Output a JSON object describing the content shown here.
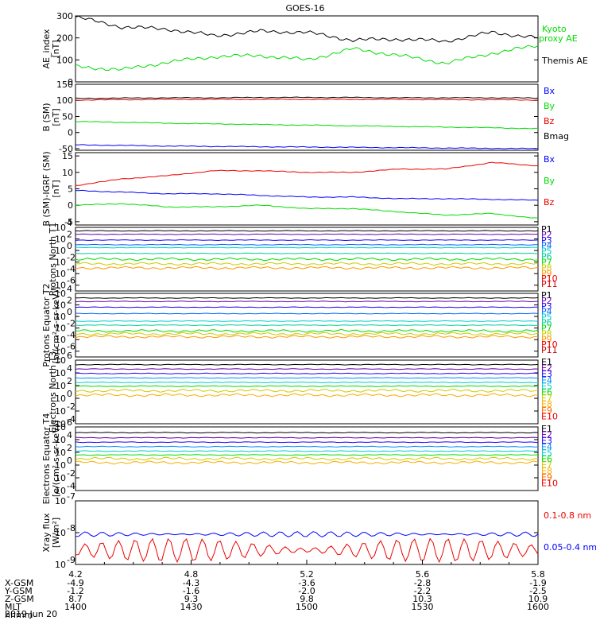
{
  "title": "GOES-16",
  "date_label": "2019 Jun 20",
  "colors": {
    "black": "#000000",
    "blue": "#0000ff",
    "green": "#00dd00",
    "red": "#ee0000",
    "proton": [
      "#000000",
      "#6600aa",
      "#2200ff",
      "#0066ff",
      "#00cccc",
      "#00cc99",
      "#00dd00",
      "#cccc00",
      "#ff9900",
      "#ee0000",
      "#cc0000"
    ],
    "electron": [
      "#000000",
      "#6600aa",
      "#2200ff",
      "#0088ff",
      "#00cccc",
      "#00dd00",
      "#cccc00",
      "#ffaa00",
      "#ff6600",
      "#ee0000"
    ]
  },
  "x_axis": {
    "tick_labels": [
      "4.2",
      "4.8",
      "5.2",
      "5.6",
      "5.8"
    ],
    "rows": [
      {
        "name": "X-GSM",
        "values": [
          "-4.9",
          "-4.3",
          "-3.6",
          "-2.8",
          "-1.9"
        ]
      },
      {
        "name": "Y-GSM",
        "values": [
          "-1.2",
          "-1.6",
          "-2.0",
          "-2.2",
          "-2.5"
        ]
      },
      {
        "name": "Z-GSM",
        "values": [
          "8.7",
          "9.3",
          "9.8",
          "10.3",
          "10.9"
        ]
      },
      {
        "name": "MLT",
        "values": [
          "1400",
          "1430",
          "1500",
          "1530",
          "1600"
        ]
      }
    ],
    "extra_row_label": "hhmm"
  },
  "chart_data": [
    {
      "type": "line",
      "name": "ae",
      "ylabel": "AE_index [nT]",
      "ylim": [
        0,
        300
      ],
      "ticks": [
        "0",
        "100",
        "200",
        "300"
      ],
      "x": [
        0,
        0.1,
        0.2,
        0.3,
        0.4,
        0.5,
        0.6,
        0.7,
        0.8,
        0.9,
        1.0
      ],
      "series": [
        {
          "name": "Themis AE",
          "color": "black",
          "values": [
            295,
            250,
            240,
            210,
            230,
            225,
            190,
            195,
            185,
            225,
            200
          ]
        },
        {
          "name": "Kyoto proxy AE",
          "color": "green",
          "values": [
            70,
            55,
            90,
            115,
            120,
            100,
            150,
            120,
            85,
            130,
            165
          ]
        }
      ],
      "legend": [
        "Kyoto proxy AE",
        "Themis AE"
      ]
    },
    {
      "type": "line",
      "name": "bsm",
      "ylabel": "B (SM) [nT]",
      "ylim": [
        -55,
        150
      ],
      "ticks": [
        "-50",
        "0",
        "50",
        "100",
        "150"
      ],
      "x": [
        0,
        0.1,
        0.2,
        0.3,
        0.4,
        0.5,
        0.6,
        0.7,
        0.8,
        0.9,
        1.0
      ],
      "series": [
        {
          "name": "Bmag",
          "color": "black",
          "values": [
            106,
            107,
            108,
            108,
            109,
            109,
            109,
            108,
            108,
            108,
            107
          ]
        },
        {
          "name": "Bz",
          "color": "red",
          "values": [
            101,
            102,
            103,
            103,
            103,
            103,
            103,
            103,
            102,
            102,
            101
          ]
        },
        {
          "name": "By",
          "color": "green",
          "values": [
            34,
            32,
            29,
            27,
            25,
            23,
            21,
            19,
            17,
            15,
            12
          ]
        },
        {
          "name": "Bx",
          "color": "blue",
          "values": [
            -38,
            -40,
            -42,
            -43,
            -44,
            -45,
            -46,
            -47,
            -48,
            -49,
            -50
          ]
        }
      ],
      "legend": [
        "Bx",
        "By",
        "Bz",
        "Bmag"
      ]
    },
    {
      "type": "line",
      "name": "bdiff",
      "ylabel": "B (SM)-IGRF (SM) [nT]",
      "ylim": [
        -6,
        16
      ],
      "ticks": [
        "-5",
        "0",
        "5",
        "10",
        "15"
      ],
      "x": [
        0,
        0.1,
        0.2,
        0.3,
        0.4,
        0.5,
        0.6,
        0.7,
        0.8,
        0.9,
        1.0
      ],
      "series": [
        {
          "name": "Bz",
          "color": "red",
          "values": [
            6,
            8,
            9,
            10.5,
            10.5,
            10,
            10,
            11,
            11,
            13,
            12
          ]
        },
        {
          "name": "By",
          "color": "green",
          "values": [
            0,
            0.5,
            -0.5,
            -0.5,
            0,
            -1,
            -1,
            -2,
            -3,
            -2.5,
            -4
          ]
        },
        {
          "name": "Bx",
          "color": "blue",
          "values": [
            4.5,
            4,
            3.5,
            3.5,
            3,
            2.5,
            2.5,
            2,
            2,
            1.8,
            1.5
          ]
        }
      ],
      "legend": [
        "Bx",
        "By",
        "Bz"
      ]
    },
    {
      "type": "line",
      "name": "pnorth",
      "log": true,
      "ylabel": "Protons North T1",
      "ylim_exp": [
        -7,
        4
      ],
      "ticks": [
        {
          "m": "10",
          "e": "4"
        },
        {
          "m": "10",
          "e": "2"
        },
        {
          "m": "10",
          "e": "0"
        },
        {
          "m": "10",
          "e": "-2"
        },
        {
          "m": "10",
          "e": "-4"
        },
        {
          "m": "10",
          "e": "-6"
        }
      ],
      "levels_exp": [
        3.4,
        2.8,
        1.8,
        1.0,
        0.5,
        -0.5,
        -1.5,
        -2.3,
        -3.0
      ],
      "legend": [
        "P1",
        "P2",
        "P3",
        "P4",
        "P5",
        "P6",
        "P7",
        "P8",
        "P9",
        "P10",
        "P11"
      ]
    },
    {
      "type": "line",
      "name": "peq",
      "log": true,
      "ylabel": "Protons Equator T2 [p/(cm²-s-sr-keV)]",
      "ylim_exp": [
        -7,
        4
      ],
      "ticks": [
        {
          "m": "10",
          "e": "4"
        },
        {
          "m": "10",
          "e": "2"
        },
        {
          "m": "10",
          "e": "0"
        },
        {
          "m": "10",
          "e": "-2"
        },
        {
          "m": "10",
          "e": "-4"
        },
        {
          "m": "10",
          "e": "-6"
        }
      ],
      "levels_exp": [
        3.2,
        2.6,
        1.6,
        0.5,
        -0.8,
        -1.5,
        -2.5,
        -3.0,
        -3.5
      ],
      "legend": [
        "P1",
        "P2",
        "P3",
        "P4",
        "P5",
        "P6",
        "P7",
        "P8",
        "P9",
        "P10",
        "P11"
      ]
    },
    {
      "type": "line",
      "name": "enorth",
      "log": true,
      "ylabel": "Electrons North T3",
      "ylim_exp": [
        -4,
        6
      ],
      "ticks": [
        {
          "m": "10",
          "e": "6"
        },
        {
          "m": "10",
          "e": "4"
        },
        {
          "m": "10",
          "e": "2"
        },
        {
          "m": "10",
          "e": "0"
        },
        {
          "m": "10",
          "e": "-2"
        },
        {
          "m": "10",
          "e": "-4"
        }
      ],
      "levels_exp": [
        5.3,
        4.6,
        3.9,
        3.2,
        2.5,
        1.9,
        1.2,
        0.5
      ],
      "legend": [
        "E1",
        "E2",
        "E3",
        "E4",
        "E5",
        "E6",
        "E7",
        "E8",
        "E9",
        "E10"
      ]
    },
    {
      "type": "line",
      "name": "eeq",
      "log": true,
      "ylabel": "Electrons Equator T4 [e/(cm²-s-sr-keV)]",
      "ylim_exp": [
        -4,
        6
      ],
      "ticks": [
        {
          "m": "10",
          "e": "6"
        },
        {
          "m": "10",
          "e": "4"
        },
        {
          "m": "10",
          "e": "2"
        },
        {
          "m": "10",
          "e": "0"
        },
        {
          "m": "10",
          "e": "-2"
        },
        {
          "m": "10",
          "e": "-4"
        }
      ],
      "levels_exp": [
        5.1,
        4.3,
        3.6,
        2.9,
        2.2,
        1.6,
        1.0,
        0.4
      ],
      "legend": [
        "E1",
        "E2",
        "E3",
        "E4",
        "E5",
        "E6",
        "E7",
        "E8",
        "E9",
        "E10"
      ]
    },
    {
      "type": "line",
      "name": "xray",
      "log": true,
      "ylabel": "Xray flux [W/m²]",
      "ylim_exp": [
        -9,
        -7
      ],
      "ticks": [
        {
          "m": "10",
          "e": "-7"
        },
        {
          "m": "10",
          "e": "-8"
        },
        {
          "m": "10",
          "e": "-9"
        }
      ],
      "series": [
        {
          "name": "0.05-0.4 nm",
          "color": "blue",
          "level_exp": -8.05
        },
        {
          "name": "0.1-0.8 nm",
          "color": "red",
          "level_exp": -8.55
        }
      ],
      "legend": [
        "0.1-0.8 nm",
        "0.05-0.4 nm"
      ]
    }
  ]
}
